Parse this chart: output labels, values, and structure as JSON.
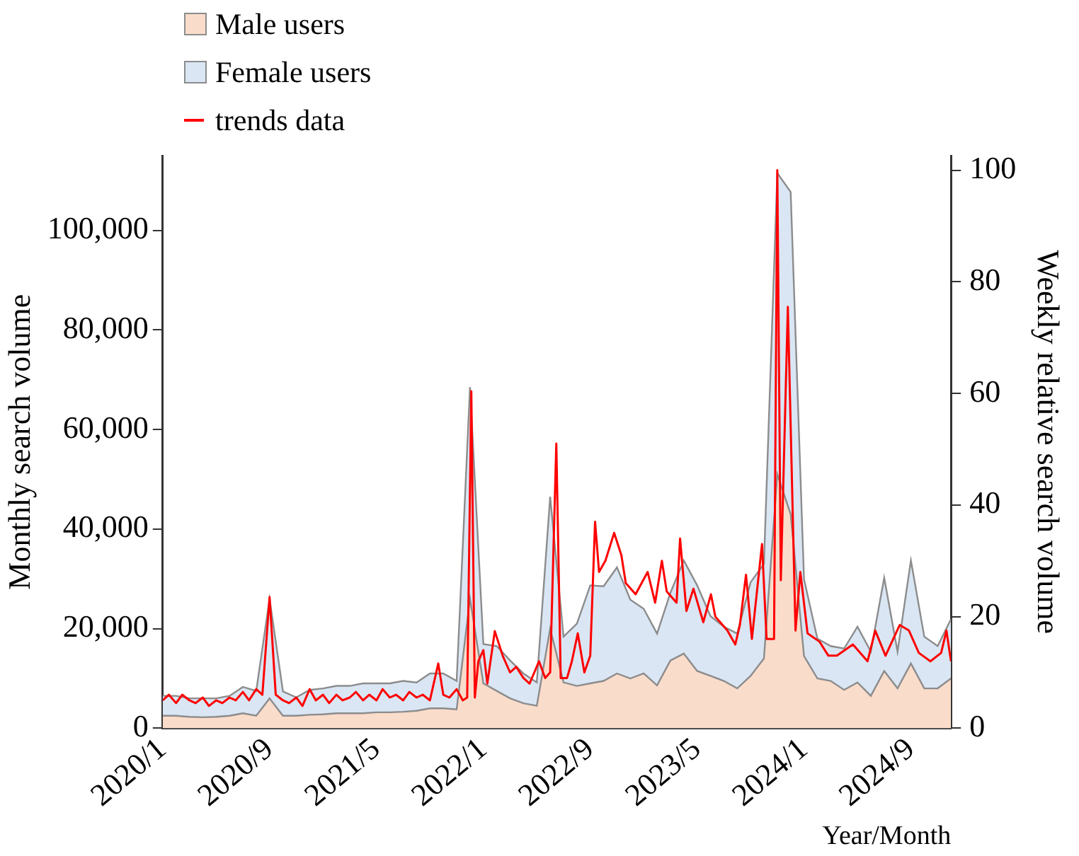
{
  "chart_data": {
    "type": "area",
    "stacked": true,
    "legend": "top left",
    "grid": false,
    "xlabel": "Year/Month",
    "ylabel": "Monthly search volume",
    "y2label": "Weekly relative search volume",
    "x": [
      "2020-01",
      "2020-02",
      "2020-03",
      "2020-04",
      "2020-05",
      "2020-06",
      "2020-07",
      "2020-08",
      "2020-09",
      "2020-10",
      "2020-11",
      "2020-12",
      "2021-01",
      "2021-02",
      "2021-03",
      "2021-04",
      "2021-05",
      "2021-06",
      "2021-07",
      "2021-08",
      "2021-09",
      "2021-10",
      "2021-11",
      "2021-12",
      "2022-01",
      "2022-02",
      "2022-03",
      "2022-04",
      "2022-05",
      "2022-06",
      "2022-07",
      "2022-08",
      "2022-09",
      "2022-10",
      "2022-11",
      "2022-12",
      "2023-01",
      "2023-02",
      "2023-03",
      "2023-04",
      "2023-05",
      "2023-06",
      "2023-07",
      "2023-08",
      "2023-09",
      "2023-10",
      "2023-11",
      "2023-12",
      "2024-01",
      "2024-02",
      "2024-03",
      "2024-04",
      "2024-05",
      "2024-06",
      "2024-07",
      "2024-08",
      "2024-09",
      "2024-10",
      "2024-11",
      "2024-12"
    ],
    "xlim": [
      "2020-01",
      "2024-12"
    ],
    "xticks": [
      {
        "value": "2020-01",
        "label": "2020/1"
      },
      {
        "value": "2020-09",
        "label": "2020/9"
      },
      {
        "value": "2021-05",
        "label": "2021/5"
      },
      {
        "value": "2022-01",
        "label": "2022/1"
      },
      {
        "value": "2022-09",
        "label": "2022/9"
      },
      {
        "value": "2023-05",
        "label": "2023/5"
      },
      {
        "value": "2024-01",
        "label": "2024/1"
      },
      {
        "value": "2024-09",
        "label": "2024/9"
      }
    ],
    "ylim": [
      0,
      115000
    ],
    "yticks": [
      {
        "value": 0,
        "label": "0"
      },
      {
        "value": 20000,
        "label": "20,000"
      },
      {
        "value": 40000,
        "label": "40,000"
      },
      {
        "value": 60000,
        "label": "60,000"
      },
      {
        "value": 80000,
        "label": "80,000"
      },
      {
        "value": 100000,
        "label": "100,000"
      }
    ],
    "y2lim": [
      0,
      102.6
    ],
    "y2ticks": [
      0,
      20,
      40,
      60,
      80,
      100
    ],
    "series": [
      {
        "name": "Male users",
        "type": "area",
        "color": "#fadccb",
        "values": [
          2500,
          2500,
          2300,
          2200,
          2300,
          2500,
          3000,
          2500,
          6000,
          2500,
          2500,
          2700,
          2800,
          3000,
          3000,
          3000,
          3200,
          3200,
          3300,
          3500,
          4000,
          4000,
          3800,
          26000,
          9000,
          7500,
          6000,
          5000,
          4500,
          20000,
          9200,
          8500,
          9000,
          9500,
          11000,
          10000,
          11000,
          8600,
          13600,
          15000,
          11500,
          10500,
          9500,
          8000,
          10500,
          14000,
          51000,
          43000,
          14500,
          10000,
          9500,
          7700,
          9200,
          6500,
          11500,
          8000,
          13000,
          8000,
          8000,
          10000
        ]
      },
      {
        "name": "Female users",
        "type": "area",
        "color": "#dae6f4",
        "values": [
          4000,
          4000,
          3700,
          3800,
          3700,
          4000,
          5300,
          5000,
          20000,
          4900,
          3700,
          5000,
          5200,
          5500,
          5500,
          6000,
          5800,
          5800,
          6200,
          5700,
          7000,
          7000,
          5700,
          42500,
          7900,
          9000,
          7600,
          6000,
          4700,
          26500,
          9200,
          12500,
          19700,
          19000,
          21300,
          15800,
          13000,
          10400,
          13600,
          18700,
          17200,
          12000,
          10900,
          11000,
          18800,
          19000,
          60500,
          64700,
          15400,
          8000,
          7000,
          8300,
          11200,
          8900,
          18700,
          7400,
          20700,
          10400,
          8500,
          11900
        ]
      },
      {
        "name": "trends data",
        "type": "line",
        "axis": "y2",
        "color": "#ff0000",
        "x": [
          "2020-01-01",
          "2020-01-15",
          "2020-02-01",
          "2020-02-15",
          "2020-03-01",
          "2020-03-15",
          "2020-04-01",
          "2020-04-15",
          "2020-05-01",
          "2020-05-15",
          "2020-06-01",
          "2020-06-15",
          "2020-07-01",
          "2020-07-15",
          "2020-08-01",
          "2020-08-15",
          "2020-09-01",
          "2020-09-15",
          "2020-10-01",
          "2020-10-15",
          "2020-11-01",
          "2020-11-15",
          "2020-12-01",
          "2020-12-15",
          "2021-01-01",
          "2021-01-15",
          "2021-02-01",
          "2021-02-15",
          "2021-03-01",
          "2021-03-15",
          "2021-04-01",
          "2021-04-15",
          "2021-05-01",
          "2021-05-15",
          "2021-06-01",
          "2021-06-15",
          "2021-07-01",
          "2021-07-15",
          "2021-08-01",
          "2021-08-15",
          "2021-09-01",
          "2021-09-20",
          "2021-10-01",
          "2021-10-15",
          "2021-11-01",
          "2021-11-15",
          "2021-11-25",
          "2021-12-04",
          "2021-12-12",
          "2021-12-20",
          "2022-01-01",
          "2022-01-10",
          "2022-01-27",
          "2022-02-15",
          "2022-03-01",
          "2022-03-15",
          "2022-04-01",
          "2022-04-15",
          "2022-05-06",
          "2022-05-20",
          "2022-06-01",
          "2022-06-15",
          "2022-06-25",
          "2022-07-09",
          "2022-07-20",
          "2022-08-03",
          "2022-08-18",
          "2022-09-01",
          "2022-09-12",
          "2022-09-21",
          "2022-10-05",
          "2022-10-25",
          "2022-11-11",
          "2022-11-21",
          "2022-12-13",
          "2023-01-10",
          "2023-01-27",
          "2023-02-12",
          "2023-02-23",
          "2023-03-15",
          "2023-03-23",
          "2023-04-07",
          "2023-04-23",
          "2023-05-15",
          "2023-06-02",
          "2023-06-12",
          "2023-07-09",
          "2023-07-27",
          "2023-08-07",
          "2023-08-21",
          "2023-09-04",
          "2023-09-27",
          "2023-10-07",
          "2023-10-24",
          "2023-11-01",
          "2023-11-09",
          "2023-11-25",
          "2023-12-12",
          "2023-12-23",
          "2024-01-09",
          "2024-02-06",
          "2024-02-26",
          "2024-03-15",
          "2024-04-21",
          "2024-05-24",
          "2024-06-11",
          "2024-07-04",
          "2024-08-06",
          "2024-08-27",
          "2024-09-19",
          "2024-10-15",
          "2024-11-09",
          "2024-11-21",
          "2024-12-01"
        ],
        "values": [
          5,
          6,
          4.5,
          6,
          5,
          4.5,
          5.5,
          4,
          5,
          4.5,
          5.5,
          5,
          6.5,
          5,
          7,
          6,
          23.5,
          6,
          5,
          4.5,
          5.5,
          4,
          7,
          5,
          6,
          4.5,
          6,
          5,
          5.5,
          6.5,
          5,
          6,
          5,
          7,
          5.5,
          6,
          5,
          6.5,
          5.5,
          6,
          5,
          11.6,
          6,
          5.5,
          7,
          5,
          5.5,
          60.4,
          5.5,
          12,
          14,
          8,
          17.4,
          12.9,
          10,
          11,
          9,
          8,
          12,
          9,
          10,
          51,
          9,
          9,
          12,
          17,
          10,
          13,
          37,
          28,
          30,
          35,
          31,
          26,
          24,
          28,
          22.5,
          30,
          24.5,
          22.5,
          34,
          21,
          25,
          19,
          24,
          20,
          17.5,
          15,
          18.5,
          27.5,
          16,
          33,
          16,
          16,
          100,
          26.5,
          75.5,
          17.5,
          28,
          17,
          15.5,
          13,
          13,
          15,
          12,
          17.5,
          13,
          18.5,
          17.5,
          13.5,
          12,
          13.5,
          17.5,
          12
        ]
      }
    ]
  }
}
